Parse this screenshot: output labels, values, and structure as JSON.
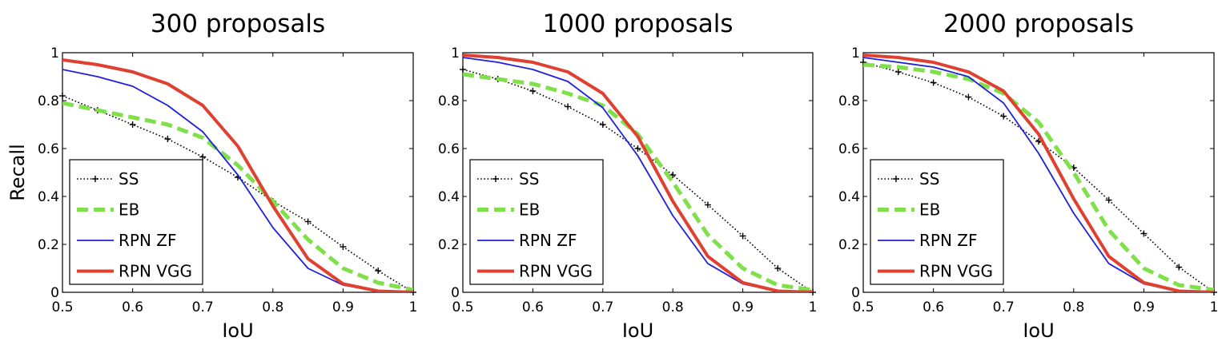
{
  "chart_data": [
    {
      "type": "line",
      "title": "300 proposals",
      "xlabel": "IoU",
      "ylabel": "Recall",
      "xlim": [
        0.5,
        1
      ],
      "ylim": [
        0,
        1
      ],
      "xticks": [
        "0.5",
        "0.6",
        "0.7",
        "0.8",
        "0.9",
        "1"
      ],
      "yticks": [
        "0",
        "0.2",
        "0.4",
        "0.6",
        "0.8",
        "1"
      ],
      "grid": false,
      "legend_position": "bottom-left",
      "series": [
        {
          "name": "SS",
          "color": "#000000",
          "style": "dotted-plus",
          "x": [
            0.5,
            0.55,
            0.6,
            0.65,
            0.7,
            0.75,
            0.8,
            0.85,
            0.9,
            0.95,
            1
          ],
          "y": [
            0.82,
            0.76,
            0.7,
            0.64,
            0.565,
            0.48,
            0.38,
            0.295,
            0.19,
            0.09,
            0.0
          ]
        },
        {
          "name": "EB",
          "color": "#7FE04A",
          "style": "dashed",
          "x": [
            0.5,
            0.55,
            0.6,
            0.65,
            0.7,
            0.75,
            0.8,
            0.85,
            0.9,
            0.95,
            1
          ],
          "y": [
            0.79,
            0.76,
            0.73,
            0.7,
            0.645,
            0.53,
            0.38,
            0.22,
            0.1,
            0.04,
            0.01
          ]
        },
        {
          "name": "RPN ZF",
          "color": "#1F1FE0",
          "style": "solid-thin",
          "x": [
            0.5,
            0.55,
            0.6,
            0.65,
            0.7,
            0.75,
            0.8,
            0.85,
            0.9,
            0.95,
            1
          ],
          "y": [
            0.93,
            0.9,
            0.86,
            0.78,
            0.67,
            0.49,
            0.27,
            0.1,
            0.03,
            0.005,
            0.0
          ]
        },
        {
          "name": "RPN VGG",
          "color": "#E04030",
          "style": "solid-thick",
          "x": [
            0.5,
            0.55,
            0.6,
            0.65,
            0.7,
            0.75,
            0.8,
            0.85,
            0.9,
            0.95,
            1
          ],
          "y": [
            0.97,
            0.95,
            0.92,
            0.87,
            0.78,
            0.61,
            0.36,
            0.14,
            0.035,
            0.005,
            0.0
          ]
        }
      ]
    },
    {
      "type": "line",
      "title": "1000 proposals",
      "xlabel": "IoU",
      "ylabel": "",
      "xlim": [
        0.5,
        1
      ],
      "ylim": [
        0,
        1
      ],
      "xticks": [
        "0.5",
        "0.6",
        "0.7",
        "0.8",
        "0.9",
        "1"
      ],
      "yticks": [
        "0",
        "0.2",
        "0.4",
        "0.6",
        "0.8",
        "1"
      ],
      "grid": false,
      "legend_position": "bottom-left",
      "series": [
        {
          "name": "SS",
          "color": "#000000",
          "style": "dotted-plus",
          "x": [
            0.5,
            0.55,
            0.6,
            0.65,
            0.7,
            0.75,
            0.8,
            0.85,
            0.9,
            0.95,
            1
          ],
          "y": [
            0.93,
            0.89,
            0.84,
            0.775,
            0.7,
            0.6,
            0.49,
            0.365,
            0.235,
            0.1,
            0.0
          ]
        },
        {
          "name": "EB",
          "color": "#7FE04A",
          "style": "dashed",
          "x": [
            0.5,
            0.55,
            0.6,
            0.65,
            0.7,
            0.75,
            0.8,
            0.85,
            0.9,
            0.95,
            1
          ],
          "y": [
            0.91,
            0.89,
            0.87,
            0.83,
            0.78,
            0.66,
            0.46,
            0.24,
            0.1,
            0.03,
            0.01
          ]
        },
        {
          "name": "RPN ZF",
          "color": "#1F1FE0",
          "style": "solid-thin",
          "x": [
            0.5,
            0.55,
            0.6,
            0.65,
            0.7,
            0.75,
            0.8,
            0.85,
            0.9,
            0.95,
            1
          ],
          "y": [
            0.98,
            0.96,
            0.93,
            0.88,
            0.77,
            0.57,
            0.32,
            0.12,
            0.035,
            0.005,
            0.0
          ]
        },
        {
          "name": "RPN VGG",
          "color": "#E04030",
          "style": "solid-thick",
          "x": [
            0.5,
            0.55,
            0.6,
            0.65,
            0.7,
            0.75,
            0.8,
            0.85,
            0.9,
            0.95,
            1
          ],
          "y": [
            0.99,
            0.98,
            0.96,
            0.92,
            0.83,
            0.65,
            0.38,
            0.15,
            0.04,
            0.005,
            0.0
          ]
        }
      ]
    },
    {
      "type": "line",
      "title": "2000 proposals",
      "xlabel": "IoU",
      "ylabel": "",
      "xlim": [
        0.5,
        1
      ],
      "ylim": [
        0,
        1
      ],
      "xticks": [
        "0.5",
        "0.6",
        "0.7",
        "0.8",
        "0.9",
        "1"
      ],
      "yticks": [
        "0",
        "0.2",
        "0.4",
        "0.6",
        "0.8",
        "1"
      ],
      "grid": false,
      "legend_position": "bottom-left",
      "series": [
        {
          "name": "SS",
          "color": "#000000",
          "style": "dotted-plus",
          "x": [
            0.5,
            0.55,
            0.6,
            0.65,
            0.7,
            0.75,
            0.8,
            0.85,
            0.9,
            0.95,
            1
          ],
          "y": [
            0.96,
            0.92,
            0.875,
            0.815,
            0.735,
            0.63,
            0.52,
            0.385,
            0.245,
            0.105,
            0.0
          ]
        },
        {
          "name": "EB",
          "color": "#7FE04A",
          "style": "dashed",
          "x": [
            0.5,
            0.55,
            0.6,
            0.65,
            0.7,
            0.75,
            0.8,
            0.85,
            0.9,
            0.95,
            1
          ],
          "y": [
            0.95,
            0.94,
            0.92,
            0.89,
            0.83,
            0.71,
            0.5,
            0.26,
            0.1,
            0.03,
            0.01
          ]
        },
        {
          "name": "RPN ZF",
          "color": "#1F1FE0",
          "style": "solid-thin",
          "x": [
            0.5,
            0.55,
            0.6,
            0.65,
            0.7,
            0.75,
            0.8,
            0.85,
            0.9,
            0.95,
            1
          ],
          "y": [
            0.98,
            0.96,
            0.94,
            0.9,
            0.79,
            0.58,
            0.33,
            0.12,
            0.035,
            0.005,
            0.0
          ]
        },
        {
          "name": "RPN VGG",
          "color": "#E04030",
          "style": "solid-thick",
          "x": [
            0.5,
            0.55,
            0.6,
            0.65,
            0.7,
            0.75,
            0.8,
            0.85,
            0.9,
            0.95,
            1
          ],
          "y": [
            0.99,
            0.98,
            0.96,
            0.92,
            0.84,
            0.66,
            0.39,
            0.15,
            0.04,
            0.005,
            0.0
          ]
        }
      ]
    }
  ]
}
